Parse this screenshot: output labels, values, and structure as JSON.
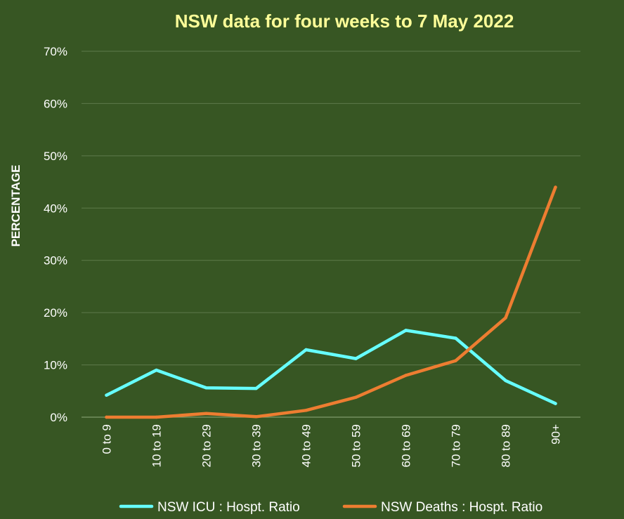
{
  "chart_data": {
    "type": "line",
    "title": "NSW data for four weeks to 7 May 2022",
    "xlabel": "",
    "ylabel": "PERCENTAGE",
    "categories": [
      "0 to 9",
      "10 to 19",
      "20 to 29",
      "30 to 39",
      "40 to 49",
      "50 to 59",
      "60 to 69",
      "70 to 79",
      "80 to 89",
      "90+"
    ],
    "ylim": [
      0,
      70
    ],
    "yticks": [
      0,
      10,
      20,
      30,
      40,
      50,
      60,
      70
    ],
    "ytick_labels": [
      "0%",
      "10%",
      "20%",
      "30%",
      "40%",
      "50%",
      "60%",
      "70%"
    ],
    "grid": true,
    "legend_position": "bottom",
    "series": [
      {
        "name": "NSW ICU : Hospt. Ratio",
        "color": "#66FFFF",
        "values": [
          4.2,
          9.0,
          5.6,
          5.5,
          12.9,
          11.2,
          16.6,
          15.1,
          7.0,
          2.6
        ]
      },
      {
        "name": "NSW Deaths : Hospt. Ratio",
        "color": "#ED7D31",
        "values": [
          0.0,
          0.0,
          0.7,
          0.1,
          1.3,
          3.8,
          8.0,
          10.8,
          19.0,
          44.0
        ]
      }
    ]
  }
}
